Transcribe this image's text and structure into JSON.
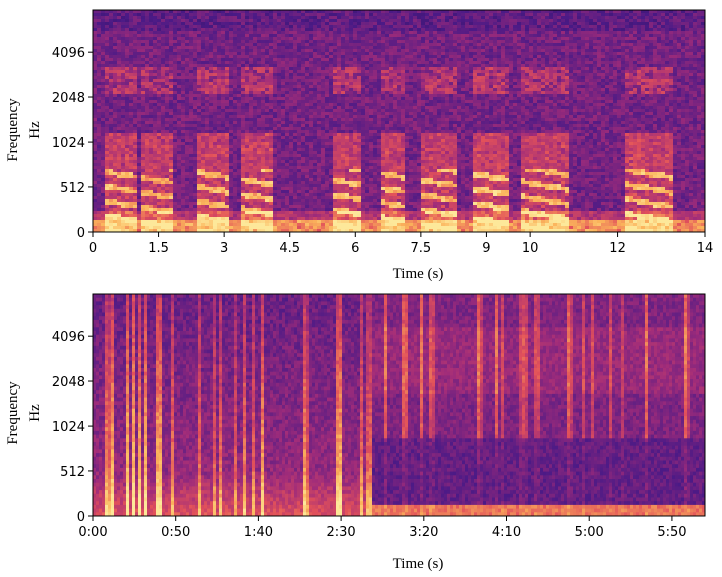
{
  "colors": {
    "cmap_low": "#1d0d45",
    "cmap_mid_low": "#4b1a86",
    "cmap_mid": "#a02c7a",
    "cmap_mid_high": "#e2515a",
    "cmap_high": "#fbb35b",
    "cmap_peak": "#fde89a"
  },
  "chart_data": [
    {
      "type": "heatmap",
      "subtype": "spectrogram",
      "colormap": "magma",
      "ylabel": "Frequency",
      "yunit": "Hz",
      "xlabel": "Time (s)",
      "xlim": [
        0,
        14
      ],
      "x_ticks": [
        0,
        1.5,
        3,
        4.5,
        6,
        7.5,
        9,
        10,
        12,
        14
      ],
      "x_tick_labels": [
        "0",
        "1.5",
        "3",
        "4.5",
        "6",
        "7.5",
        "9",
        "10",
        "12",
        "14"
      ],
      "y_scale": "log-like (mel)",
      "y_ticks": [
        0,
        512,
        1024,
        2048,
        4096
      ],
      "y_tick_labels": [
        "0",
        "512",
        "1024",
        "2048",
        "4096"
      ],
      "ylim": [
        0,
        8000
      ],
      "grid": false,
      "description_shape": "speech bursts with harmonic stacks",
      "bursts": [
        {
          "start": 0.25,
          "end": 1.0,
          "level": 0.85
        },
        {
          "start": 1.1,
          "end": 1.8,
          "level": 0.8
        },
        {
          "start": 2.4,
          "end": 3.1,
          "level": 0.85
        },
        {
          "start": 3.4,
          "end": 4.1,
          "level": 0.9
        },
        {
          "start": 5.5,
          "end": 6.1,
          "level": 0.9
        },
        {
          "start": 6.6,
          "end": 7.1,
          "level": 0.85
        },
        {
          "start": 7.5,
          "end": 8.3,
          "level": 0.85
        },
        {
          "start": 8.7,
          "end": 9.5,
          "level": 0.95
        },
        {
          "start": 9.8,
          "end": 10.9,
          "level": 0.85
        },
        {
          "start": 12.2,
          "end": 13.3,
          "level": 0.9
        }
      ]
    },
    {
      "type": "heatmap",
      "subtype": "spectrogram",
      "colormap": "magma",
      "ylabel": "Frequency",
      "yunit": "Hz",
      "xlabel": "Time (s)",
      "xlim": [
        0,
        370
      ],
      "x_ticks": [
        0,
        50,
        100,
        150,
        200,
        250,
        300,
        350
      ],
      "x_tick_labels": [
        "0:00",
        "0:50",
        "1:40",
        "2:30",
        "3:20",
        "4:10",
        "5:00",
        "5:50"
      ],
      "y_scale": "log-like (mel)",
      "y_ticks": [
        0,
        512,
        1024,
        2048,
        4096
      ],
      "y_tick_labels": [
        "0",
        "512",
        "1024",
        "2048",
        "4096"
      ],
      "ylim": [
        0,
        8000
      ],
      "grid": false,
      "description_shape": "dense broadband transients first half, quieter second half",
      "regions": [
        {
          "start": 0,
          "end": 168,
          "level": 0.75
        },
        {
          "start": 168,
          "end": 370,
          "level": 0.45
        }
      ]
    }
  ]
}
